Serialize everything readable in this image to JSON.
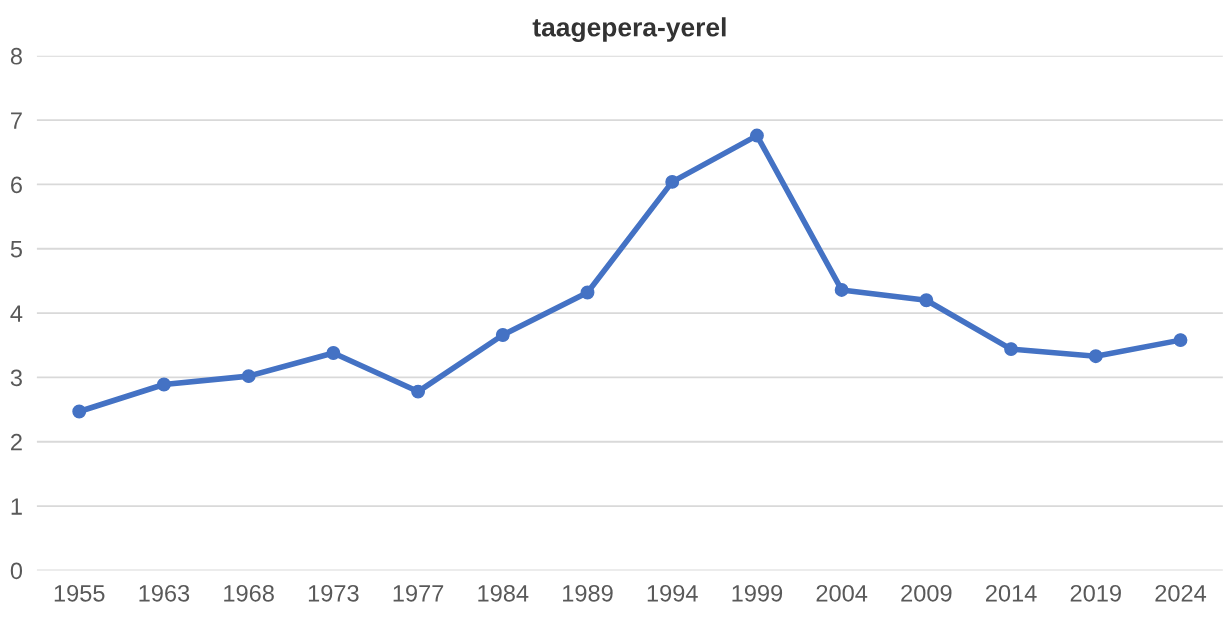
{
  "chart_data": {
    "type": "line",
    "title": "taagepera-yerel",
    "categories": [
      "1955",
      "1963",
      "1968",
      "1973",
      "1977",
      "1984",
      "1989",
      "1994",
      "1999",
      "2004",
      "2009",
      "2014",
      "2019",
      "2024"
    ],
    "series": [
      {
        "color": "#4472c4",
        "values": [
          2.47,
          2.89,
          3.02,
          3.38,
          2.78,
          3.66,
          4.32,
          6.04,
          6.76,
          4.36,
          4.2,
          3.44,
          3.33,
          3.58
        ]
      }
    ],
    "ylim": [
      0,
      8
    ],
    "yticks": [
      0,
      1,
      2,
      3,
      4,
      5,
      6,
      7,
      8
    ],
    "grid": "y",
    "marker": "circle",
    "line_style": "solid"
  }
}
